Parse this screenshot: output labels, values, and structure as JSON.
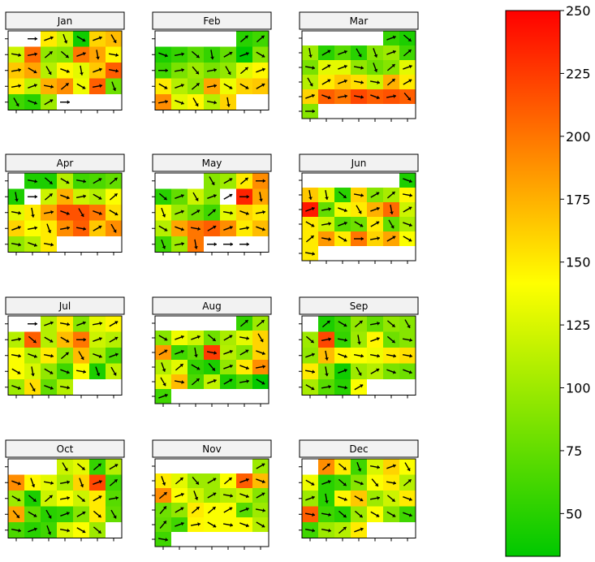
{
  "chart_data": {
    "type": "heatmap",
    "description_note": "",
    "colorbar": {
      "ticks": [
        50,
        75,
        100,
        125,
        150,
        175,
        200,
        225,
        250
      ],
      "range": [
        33,
        250
      ],
      "colors": [
        "#00c800",
        "#ffff00",
        "#ff0000"
      ]
    },
    "months": [
      {
        "name": "Jan",
        "start_col": 1,
        "days": 31,
        "values": [
          null,
          150,
          120,
          40,
          160,
          170,
          120,
          205,
          95,
          90,
          200,
          180,
          145,
          165,
          180,
          110,
          145,
          130,
          165,
          210,
          150,
          115,
          175,
          190,
          135,
          210,
          80,
          60,
          50,
          100,
          null
        ],
        "angles": [
          0,
          20,
          -70,
          -30,
          20,
          -60,
          -10,
          10,
          40,
          -40,
          20,
          -80,
          -10,
          10,
          -30,
          -60,
          -20,
          -80,
          20,
          -10,
          10,
          20,
          -10,
          40,
          -30,
          10,
          -70,
          -60,
          -20,
          30,
          0
        ]
      },
      {
        "name": "Feb",
        "start_col": 5,
        "days": 28,
        "values": [
          50,
          60,
          45,
          55,
          70,
          55,
          75,
          30,
          90,
          60,
          85,
          100,
          85,
          95,
          130,
          145,
          150,
          110,
          95,
          180,
          135,
          160,
          165,
          190,
          130,
          145,
          110,
          160
        ],
        "angles": [
          40,
          40,
          -20,
          10,
          -40,
          -80,
          30,
          20,
          -30,
          0,
          10,
          -50,
          10,
          -60,
          40,
          20,
          -30,
          20,
          40,
          10,
          -30,
          -30,
          30,
          10,
          -20,
          -60,
          -10,
          -80
        ]
      },
      {
        "name": "Mar",
        "start_col": 5,
        "days": 31,
        "values": [
          55,
          45,
          100,
          50,
          70,
          50,
          90,
          100,
          60,
          85,
          130,
          130,
          95,
          80,
          90,
          130,
          110,
          150,
          165,
          155,
          120,
          175,
          150,
          160,
          210,
          200,
          220,
          210,
          215,
          210,
          90
        ],
        "angles": [
          20,
          -40,
          -80,
          30,
          20,
          -60,
          -70,
          20,
          40,
          -10,
          30,
          20,
          -10,
          -70,
          40,
          20,
          -60,
          30,
          20,
          -10,
          -10,
          40,
          30,
          20,
          -20,
          10,
          -10,
          -20,
          10,
          -50,
          0
        ]
      },
      {
        "name": "Apr",
        "start_col": 1,
        "days": 30,
        "values": [
          45,
          45,
          110,
          60,
          65,
          75,
          45,
          null,
          120,
          175,
          120,
          110,
          140,
          130,
          150,
          180,
          215,
          215,
          200,
          155,
          160,
          140,
          150,
          190,
          210,
          165,
          190,
          95,
          110,
          150
        ],
        "angles": [
          -10,
          -40,
          -30,
          -10,
          30,
          40,
          -80,
          0,
          40,
          -20,
          10,
          -30,
          40,
          -10,
          -80,
          10,
          -20,
          -60,
          -20,
          -30,
          20,
          10,
          -70,
          10,
          -10,
          30,
          -60,
          -10,
          -20,
          -10
        ]
      },
      {
        "name": "May",
        "start_col": 3,
        "days": 31,
        "values": [
          90,
          100,
          150,
          190,
          50,
          75,
          120,
          90,
          null,
          235,
          180,
          135,
          100,
          80,
          60,
          130,
          160,
          150,
          110,
          180,
          200,
          210,
          190,
          150,
          170,
          60,
          100,
          200,
          null,
          null,
          null
        ],
        "angles": [
          -60,
          30,
          40,
          0,
          -40,
          20,
          -60,
          20,
          30,
          0,
          -80,
          -70,
          20,
          30,
          40,
          -10,
          -20,
          10,
          -30,
          -20,
          -10,
          30,
          20,
          10,
          -20,
          -70,
          10,
          -80,
          0,
          0,
          0
        ],
        "extra_arrow_row": {
          "row": 4,
          "angles": [
            -10,
            0,
            10,
            20
          ]
        }
      },
      {
        "name": "Jun",
        "start_col": 6,
        "days": 30,
        "values": [
          45,
          165,
          130,
          50,
          160,
          90,
          105,
          145,
          240,
          75,
          135,
          150,
          175,
          205,
          120,
          150,
          120,
          70,
          80,
          150,
          75,
          105,
          150,
          185,
          150,
          200,
          160,
          180,
          140,
          150
        ],
        "angles": [
          -20,
          -80,
          -80,
          -40,
          -10,
          30,
          40,
          -10,
          20,
          10,
          -20,
          -60,
          20,
          -80,
          30,
          -30,
          10,
          20,
          -30,
          30,
          -60,
          -20,
          40,
          -10,
          -30,
          0,
          10,
          30,
          -30,
          -10
        ]
      },
      {
        "name": "Jul",
        "start_col": 1,
        "days": 31,
        "values": [
          null,
          110,
          150,
          90,
          130,
          145,
          110,
          210,
          110,
          170,
          200,
          120,
          110,
          140,
          110,
          150,
          95,
          170,
          105,
          65,
          140,
          125,
          95,
          60,
          140,
          45,
          115,
          100,
          155,
          75,
          110
        ],
        "angles": [
          0,
          20,
          -10,
          20,
          10,
          30,
          10,
          -40,
          -30,
          -30,
          0,
          20,
          30,
          -10,
          -20,
          -10,
          40,
          -60,
          -20,
          20,
          -30,
          -80,
          -30,
          -20,
          -10,
          -70,
          -60,
          -20,
          -60,
          -20,
          -10
        ],
        "extra_arrow_row": {
          "row": 4,
          "angles": [
            -10,
            -20
          ]
        }
      },
      {
        "name": "Aug",
        "start_col": 5,
        "days": 31,
        "values": [
          55,
          100,
          90,
          135,
          120,
          80,
          105,
          130,
          160,
          185,
          60,
          75,
          225,
          110,
          90,
          160,
          110,
          130,
          55,
          45,
          95,
          150,
          190,
          130,
          170,
          65,
          115,
          45,
          65,
          35,
          60
        ],
        "angles": [
          40,
          40,
          -30,
          20,
          20,
          -40,
          30,
          -10,
          -60,
          30,
          20,
          -80,
          -10,
          20,
          30,
          -20,
          -70,
          40,
          -30,
          -50,
          20,
          -20,
          10,
          -60,
          -10,
          40,
          20,
          30,
          10,
          -30,
          20
        ]
      },
      {
        "name": "Sep",
        "start_col": 1,
        "days": 31,
        "values": [
          45,
          60,
          95,
          75,
          95,
          90,
          100,
          220,
          55,
          100,
          145,
          80,
          90,
          95,
          170,
          145,
          140,
          135,
          150,
          155,
          150,
          90,
          40,
          100,
          110,
          85,
          80,
          105,
          70,
          50,
          140
        ],
        "angles": [
          40,
          -30,
          40,
          10,
          -40,
          -60,
          -40,
          10,
          -10,
          -80,
          20,
          -40,
          -10,
          20,
          -80,
          -20,
          -10,
          -10,
          -10,
          -10,
          -10,
          -80,
          20,
          -60,
          30,
          -20,
          -20,
          -30,
          10,
          -10,
          30
        ],
        "extra_arrow_row": {
          "row": 4,
          "angles": [
            -10
          ]
        }
      },
      {
        "name": "Oct",
        "start_col": 3,
        "days": 31,
        "values": [
          120,
          130,
          55,
          110,
          190,
          145,
          130,
          105,
          160,
          220,
          60,
          100,
          45,
          120,
          140,
          120,
          150,
          70,
          180,
          75,
          50,
          55,
          90,
          150,
          75,
          65,
          50,
          60,
          125,
          140,
          100
        ],
        "angles": [
          -60,
          -40,
          40,
          30,
          -20,
          -70,
          -10,
          10,
          -70,
          20,
          40,
          -30,
          -40,
          40,
          10,
          -40,
          30,
          10,
          -50,
          -30,
          -60,
          20,
          30,
          -40,
          -60,
          -10,
          20,
          -70,
          -10,
          -30,
          -40
        ]
      },
      {
        "name": "Nov",
        "start_col": 6,
        "days": 30,
        "values": [
          100,
          150,
          130,
          100,
          100,
          140,
          210,
          170,
          190,
          140,
          120,
          100,
          110,
          120,
          90,
          80,
          95,
          150,
          140,
          140,
          70,
          100,
          75,
          60,
          145,
          140,
          140,
          140,
          110,
          60
        ],
        "angles": [
          30,
          -70,
          40,
          -50,
          30,
          40,
          20,
          -20,
          40,
          20,
          -70,
          30,
          -10,
          -20,
          30,
          50,
          30,
          40,
          40,
          30,
          20,
          -10,
          50,
          20,
          10,
          -30,
          -10,
          -20,
          -30,
          -10
        ]
      },
      {
        "name": "Dec",
        "start_col": 1,
        "days": 31,
        "values": [
          190,
          150,
          60,
          125,
          160,
          140,
          135,
          50,
          60,
          90,
          140,
          150,
          110,
          100,
          50,
          145,
          165,
          100,
          120,
          150,
          210,
          60,
          50,
          100,
          140,
          90,
          60,
          60,
          100,
          110,
          150
        ],
        "angles": [
          40,
          -40,
          -70,
          -10,
          20,
          -60,
          -30,
          20,
          -40,
          -20,
          -50,
          -10,
          40,
          20,
          -80,
          -20,
          -30,
          10,
          -40,
          -20,
          -10,
          -10,
          -40,
          -40,
          -30,
          -30,
          -20,
          -10,
          -10,
          40,
          20
        ],
        "extra_arrow_row": {
          "row": 4,
          "angles": [
            -10,
            -10
          ]
        }
      }
    ]
  }
}
